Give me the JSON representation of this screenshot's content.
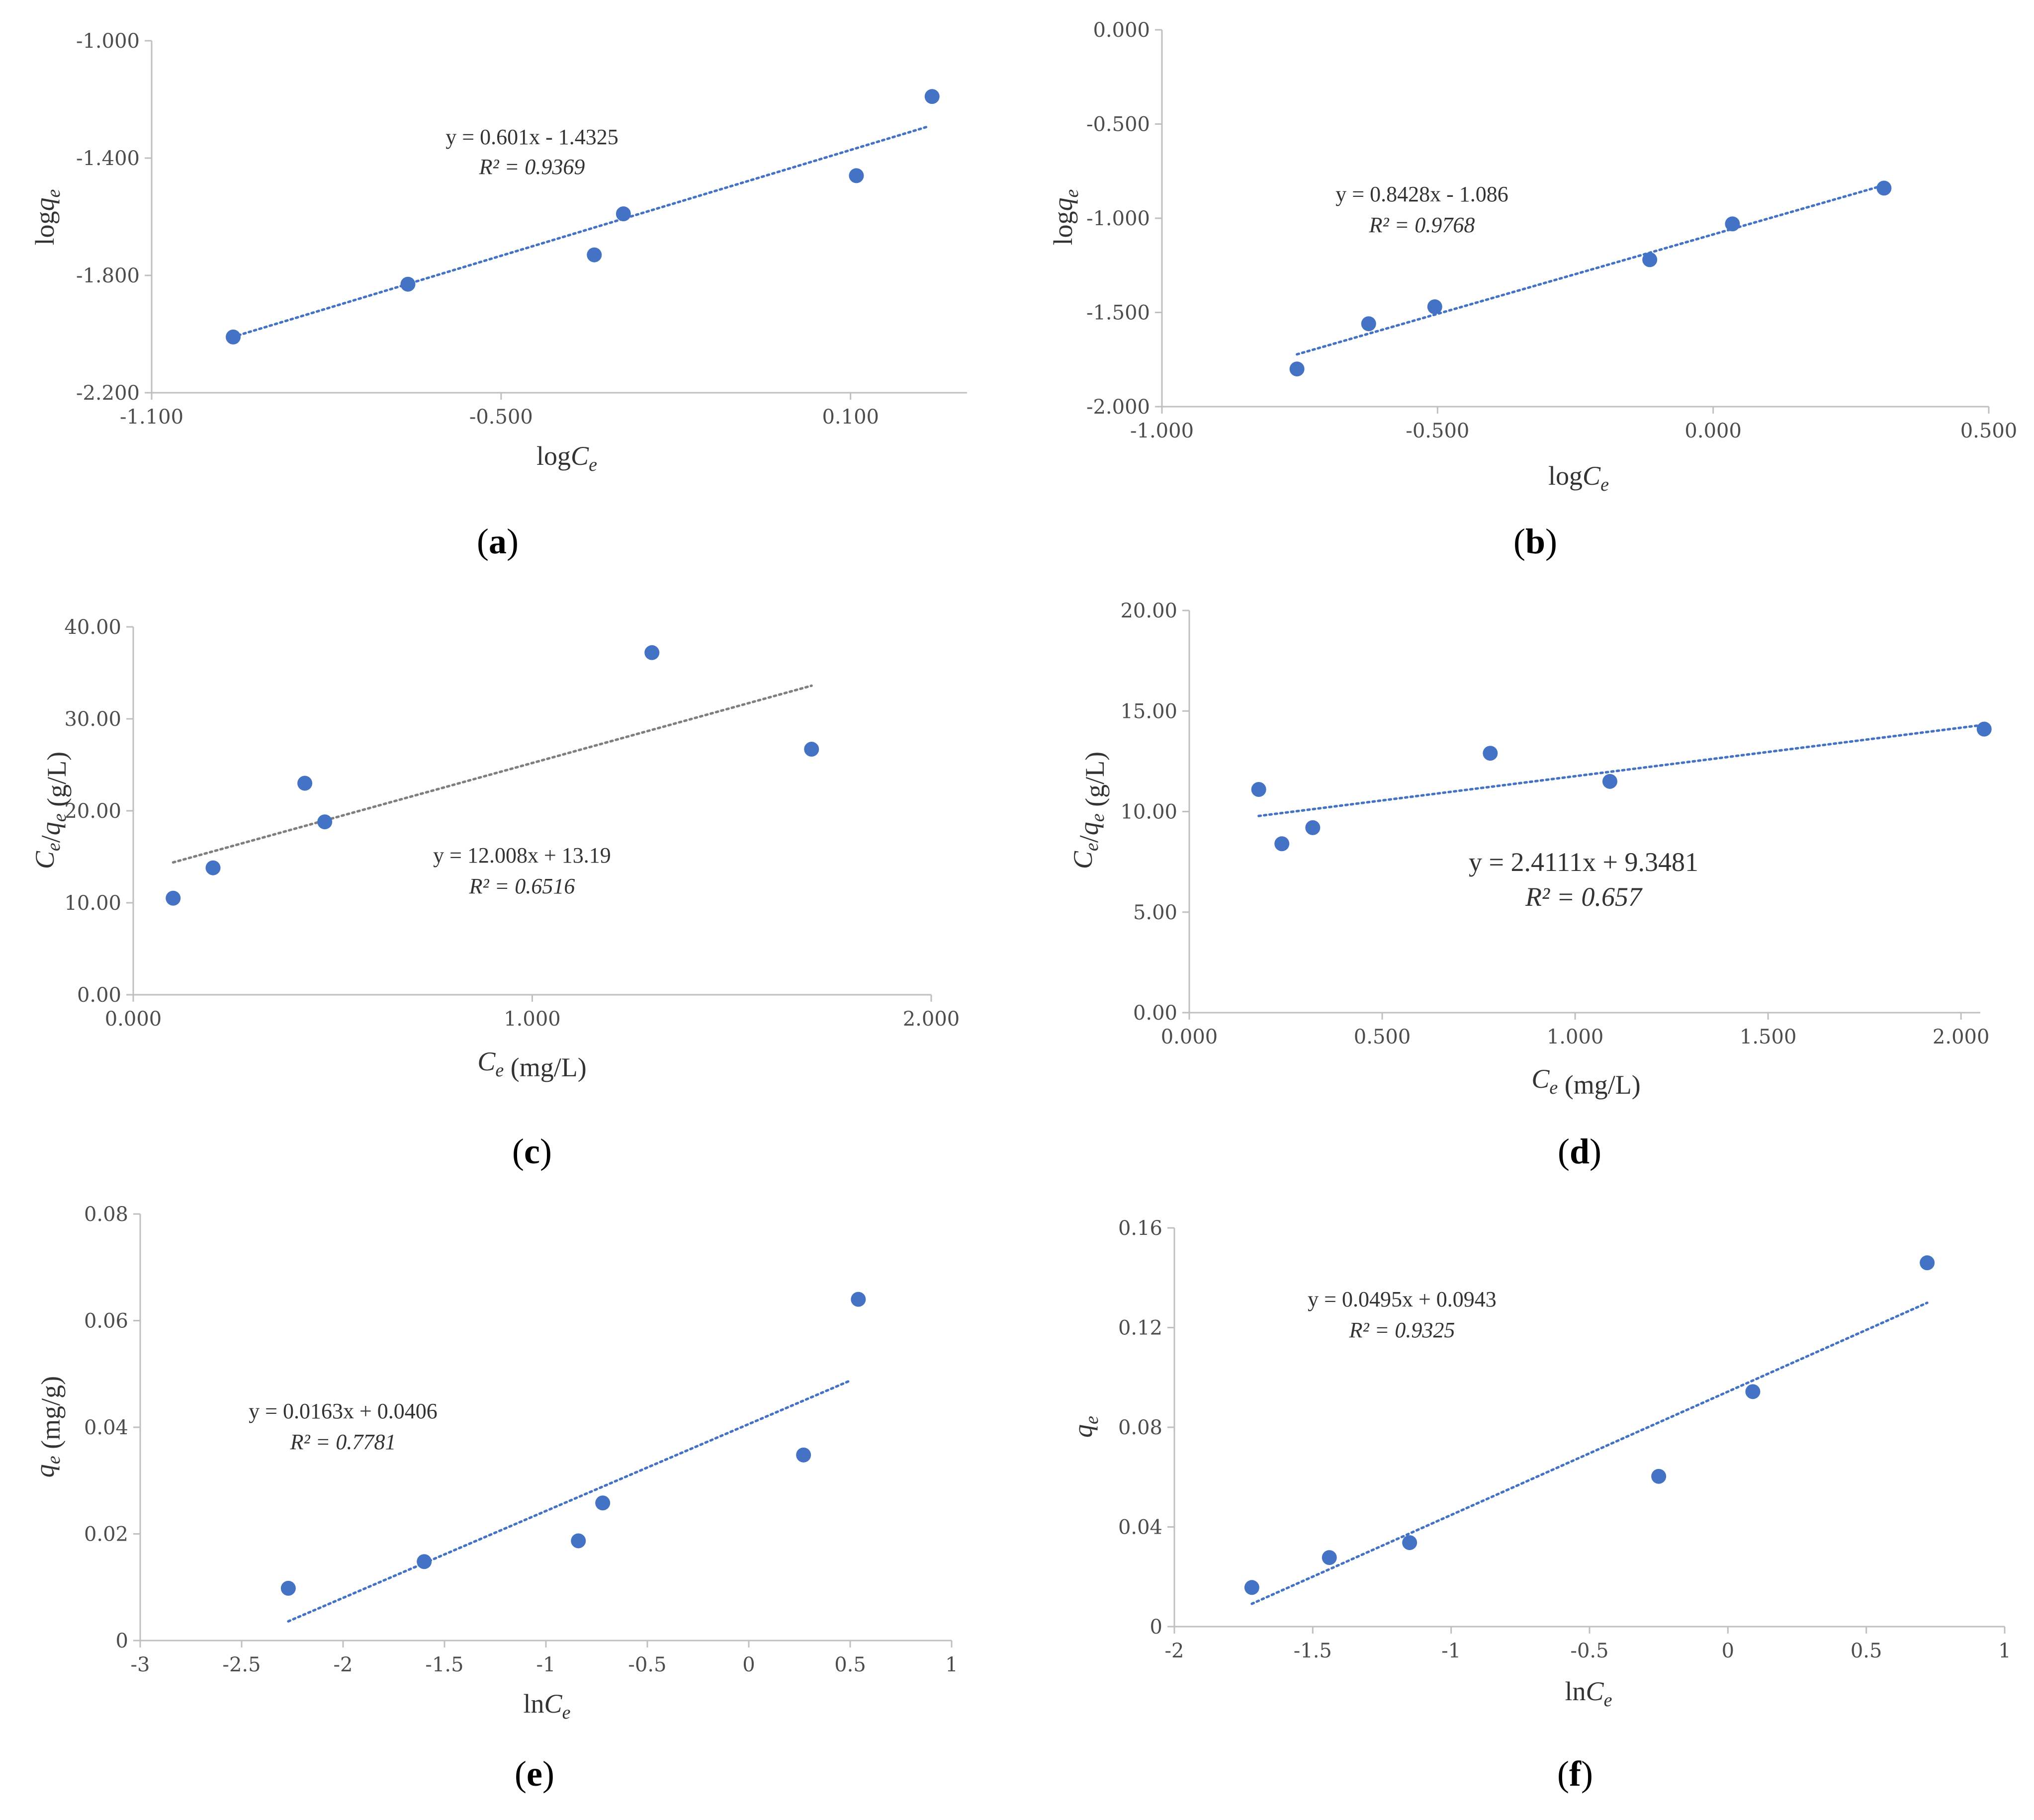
{
  "figure": {
    "colors": {
      "points": "#4472C4",
      "trend_blue": "#4472C4",
      "trend_gray": "#7f7f7f",
      "axis": "#bfbfbf",
      "text": "#404040"
    }
  },
  "chart_data": [
    {
      "id": "a",
      "panel_label": "a",
      "type": "scatter",
      "xlabel": "logCe",
      "ylabel": "logqe",
      "x_ticks": [
        "-1.100",
        "-0.500",
        "0.100"
      ],
      "x_tick_values": [
        -1.1,
        -0.5,
        0.1
      ],
      "y_ticks": [
        "-1.000",
        "-1.400",
        "-1.800",
        "-2.200"
      ],
      "y_tick_values": [
        -1.0,
        -1.4,
        -1.8,
        -2.2
      ],
      "xlim": [
        -1.1,
        0.3
      ],
      "ylim": [
        -2.2,
        -1.0
      ],
      "x_axis_at": -2.2,
      "points": {
        "x": [
          -0.96,
          -0.66,
          -0.34,
          -0.29,
          0.11,
          0.24
        ],
        "y": [
          -2.01,
          -1.83,
          -1.73,
          -1.59,
          -1.46,
          -1.19
        ]
      },
      "trendline": {
        "slope": 0.601,
        "intercept": -1.4325,
        "x_range": [
          -0.96,
          0.23
        ],
        "color": "blue"
      },
      "equation": "y = 0.601x - 1.4325",
      "r2_label": "R² = 0.9369"
    },
    {
      "id": "b",
      "panel_label": "b",
      "type": "scatter",
      "xlabel": "logCe",
      "ylabel": "logqe",
      "x_ticks": [
        "-1.000",
        "-0.500",
        "0.000",
        "0.500"
      ],
      "x_tick_values": [
        -1.0,
        -0.5,
        0.0,
        0.5
      ],
      "y_ticks": [
        "0.000",
        "-0.500",
        "-1.000",
        "-1.500",
        "-2.000"
      ],
      "y_tick_values": [
        0.0,
        -0.5,
        -1.0,
        -1.5,
        -2.0
      ],
      "xlim": [
        -1.0,
        0.5
      ],
      "ylim": [
        -2.0,
        0.0
      ],
      "x_axis_at": -2.0,
      "points": {
        "x": [
          -0.755,
          -0.625,
          -0.505,
          -0.115,
          0.035,
          0.31
        ],
        "y": [
          -1.8,
          -1.56,
          -1.47,
          -1.22,
          -1.03,
          -0.84
        ]
      },
      "trendline": {
        "slope": 0.8428,
        "intercept": -1.086,
        "x_range": [
          -0.755,
          0.31
        ],
        "color": "blue"
      },
      "equation": "y = 0.8428x - 1.086",
      "r2_label": "R² = 0.9768"
    },
    {
      "id": "c",
      "panel_label": "c",
      "type": "scatter",
      "xlabel": "Ce (mg/L)",
      "ylabel": "Ce/qe (g/L)",
      "x_ticks": [
        "0.000",
        "1.000",
        "2.000"
      ],
      "x_tick_values": [
        0.0,
        1.0,
        2.0
      ],
      "y_ticks": [
        "40.00",
        "30.00",
        "20.00",
        "10.00",
        "0.00"
      ],
      "y_tick_values": [
        40,
        30,
        20,
        10,
        0
      ],
      "xlim": [
        0.0,
        2.0
      ],
      "ylim": [
        0,
        40
      ],
      "x_axis_at": 0,
      "points": {
        "x": [
          0.1,
          0.2,
          0.43,
          0.48,
          1.3,
          1.7
        ],
        "y": [
          10.5,
          13.8,
          23.0,
          18.8,
          37.2,
          26.7
        ]
      },
      "trendline": {
        "slope": 12.008,
        "intercept": 13.19,
        "x_range": [
          0.1,
          1.7
        ],
        "color": "gray"
      },
      "equation": "y = 12.008x + 13.19",
      "r2_label": "R² = 0.6516"
    },
    {
      "id": "d",
      "panel_label": "d",
      "type": "scatter",
      "xlabel": "Ce (mg/L)",
      "ylabel": "Ce/qe (g/L)",
      "x_ticks": [
        "0.000",
        "0.500",
        "1.000",
        "1.500",
        "2.000"
      ],
      "x_tick_values": [
        0.0,
        0.5,
        1.0,
        1.5,
        2.0
      ],
      "y_ticks": [
        "20.00",
        "15.00",
        "10.00",
        "5.00",
        "0.00"
      ],
      "y_tick_values": [
        20,
        15,
        10,
        5,
        0
      ],
      "xlim": [
        0.0,
        2.05
      ],
      "ylim": [
        0,
        20
      ],
      "x_axis_at": 0,
      "points": {
        "x": [
          0.18,
          0.24,
          0.32,
          0.78,
          1.09,
          2.06
        ],
        "y": [
          11.1,
          8.4,
          9.2,
          12.9,
          11.5,
          14.1
        ]
      },
      "trendline": {
        "slope": 2.4111,
        "intercept": 9.3481,
        "x_range": [
          0.18,
          2.06
        ],
        "color": "blue"
      },
      "equation": "y = 2.4111x + 9.3481",
      "r2_label": "R² = 0.657"
    },
    {
      "id": "e",
      "panel_label": "e",
      "type": "scatter",
      "xlabel": "lnCe",
      "ylabel": "qe (mg/g)",
      "x_ticks": [
        "-3",
        "-2.5",
        "-2",
        "-1.5",
        "-1",
        "-0.5",
        "0",
        "0.5",
        "1"
      ],
      "x_tick_values": [
        -3,
        -2.5,
        -2,
        -1.5,
        -1,
        -0.5,
        0,
        0.5,
        1
      ],
      "y_ticks": [
        "0.08",
        "0.06",
        "0.04",
        "0.02",
        "0"
      ],
      "y_tick_values": [
        0.08,
        0.06,
        0.04,
        0.02,
        0
      ],
      "xlim": [
        -3,
        1
      ],
      "ylim": [
        0,
        0.08
      ],
      "x_axis_at": 0,
      "points": {
        "x": [
          -2.27,
          -1.6,
          -0.84,
          -0.72,
          0.27,
          0.54
        ],
        "y": [
          0.0098,
          0.0148,
          0.0187,
          0.0258,
          0.0348,
          0.064
        ]
      },
      "trendline": {
        "slope": 0.0163,
        "intercept": 0.0406,
        "x_range": [
          -2.27,
          0.5
        ],
        "color": "blue"
      },
      "equation": "y = 0.0163x + 0.0406",
      "r2_label": "R² = 0.7781"
    },
    {
      "id": "f",
      "panel_label": "f",
      "type": "scatter",
      "xlabel": "lnCe",
      "ylabel": "qe",
      "x_ticks": [
        "-2",
        "-1.5",
        "-1",
        "-0.5",
        "0",
        "0.5",
        "1"
      ],
      "x_tick_values": [
        -2,
        -1.5,
        -1,
        -0.5,
        0,
        0.5,
        1
      ],
      "y_ticks": [
        "0.16",
        "0.12",
        "0.08",
        "0.04",
        "0"
      ],
      "y_tick_values": [
        0.16,
        0.12,
        0.08,
        0.04,
        0
      ],
      "xlim": [
        -2,
        1
      ],
      "ylim": [
        0,
        0.16
      ],
      "x_axis_at": 0,
      "points": {
        "x": [
          -1.72,
          -1.44,
          -1.15,
          -0.25,
          0.09,
          0.72
        ],
        "y": [
          0.0157,
          0.0277,
          0.0337,
          0.0603,
          0.0943,
          0.146
        ]
      },
      "trendline": {
        "slope": 0.0495,
        "intercept": 0.0943,
        "x_range": [
          -1.72,
          0.72
        ],
        "color": "blue"
      },
      "equation": "y = 0.0495x + 0.0943",
      "r2_label": "R² = 0.9325"
    }
  ]
}
